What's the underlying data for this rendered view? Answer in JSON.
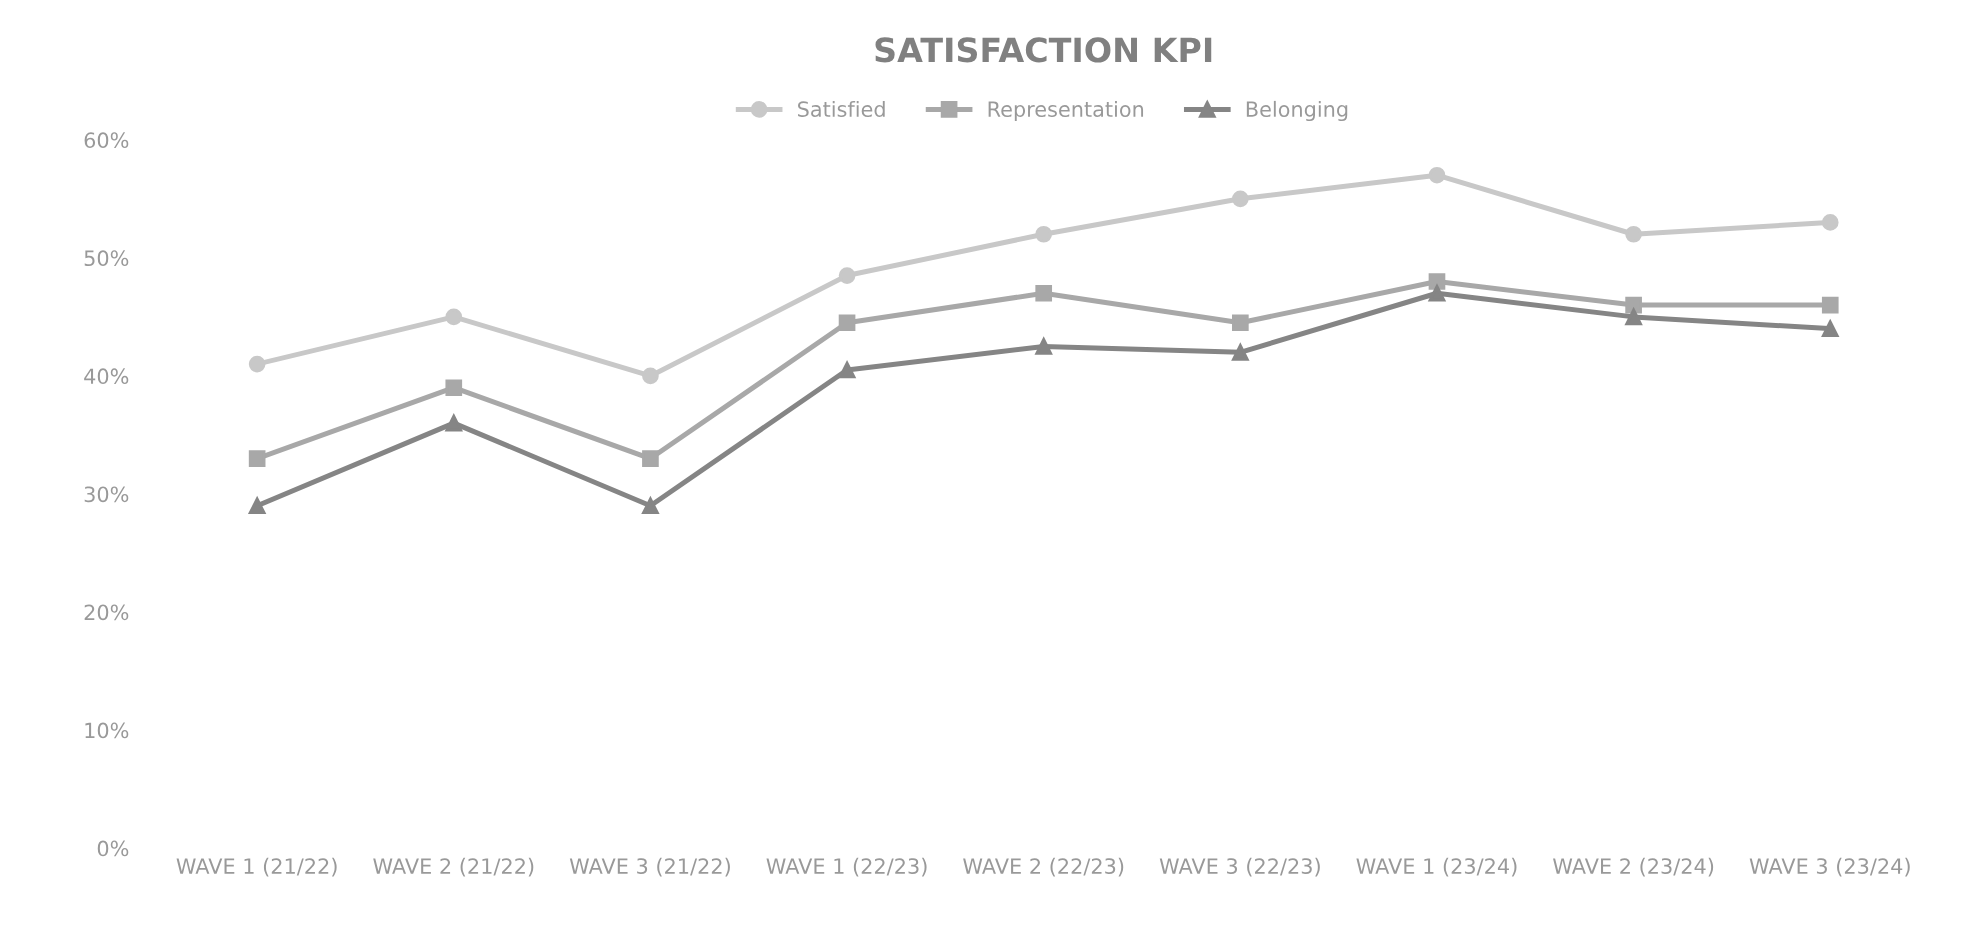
{
  "chart_data": {
    "type": "line",
    "title": "SATISFACTION KPI",
    "categories": [
      "WAVE 1 (21/22)",
      "WAVE 2 (21/22)",
      "WAVE 3 (21/22)",
      "WAVE 1 (22/23)",
      "WAVE 2 (22/23)",
      "WAVE 3 (22/23)",
      "WAVE 1 (23/24)",
      "WAVE 2 (23/24)",
      "WAVE 3 (23/24)"
    ],
    "series": [
      {
        "name": "Satisfied",
        "color": "#c8c8c8",
        "marker": "circle",
        "values": [
          41,
          45,
          40,
          48.5,
          52,
          55,
          57,
          52,
          53
        ]
      },
      {
        "name": "Representation",
        "color": "#a8a8a8",
        "marker": "square",
        "values": [
          33,
          39,
          33,
          44.5,
          47,
          44.5,
          48,
          46,
          46
        ]
      },
      {
        "name": "Belonging",
        "color": "#858585",
        "marker": "triangle",
        "values": [
          29,
          36,
          29,
          40.5,
          42.5,
          42,
          47,
          45,
          44
        ]
      }
    ],
    "ylim": [
      0,
      60
    ],
    "yticks": [
      {
        "value": 0,
        "label": "0%"
      },
      {
        "value": 10,
        "label": "10%"
      },
      {
        "value": 20,
        "label": "20%"
      },
      {
        "value": 30,
        "label": "30%"
      },
      {
        "value": 40,
        "label": "40%"
      },
      {
        "value": 50,
        "label": "50%"
      },
      {
        "value": 60,
        "label": "60%"
      }
    ],
    "legend": "top",
    "grid": false
  }
}
